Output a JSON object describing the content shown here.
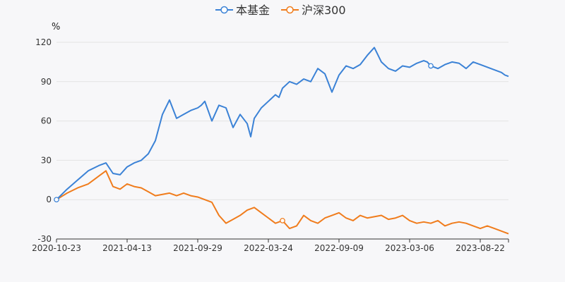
{
  "chart_data": {
    "type": "line",
    "unit": "%",
    "ylim": [
      -30,
      120
    ],
    "yticks": [
      "120",
      "90",
      "60",
      "30",
      "0",
      "-30"
    ],
    "ytick_values": [
      120,
      90,
      60,
      30,
      0,
      -30
    ],
    "xticks": [
      "2020-10-23",
      "2021-04-13",
      "2021-09-29",
      "2022-03-24",
      "2022-09-09",
      "2023-03-06",
      "2023-08-22"
    ],
    "x_range_index": [
      0,
      6.4
    ],
    "grid": "horizontal",
    "legend_position": "top-center",
    "series": [
      {
        "name": "本基金",
        "color": "#3b82d6",
        "x": [
          0,
          0.15,
          0.3,
          0.45,
          0.6,
          0.7,
          0.8,
          0.9,
          1.0,
          1.1,
          1.2,
          1.3,
          1.4,
          1.5,
          1.6,
          1.7,
          1.8,
          1.9,
          2.0,
          2.05,
          2.1,
          2.2,
          2.3,
          2.4,
          2.5,
          2.6,
          2.7,
          2.75,
          2.8,
          2.9,
          3.0,
          3.1,
          3.15,
          3.2,
          3.3,
          3.4,
          3.5,
          3.6,
          3.7,
          3.8,
          3.9,
          4.0,
          4.1,
          4.2,
          4.3,
          4.4,
          4.5,
          4.6,
          4.7,
          4.8,
          4.9,
          5.0,
          5.1,
          5.2,
          5.25,
          5.3,
          5.4,
          5.5,
          5.6,
          5.7,
          5.8,
          5.9,
          6.0,
          6.1,
          6.2,
          6.3,
          6.35,
          6.4
        ],
        "values": [
          0,
          8,
          15,
          22,
          26,
          28,
          20,
          19,
          25,
          28,
          30,
          35,
          45,
          65,
          76,
          62,
          65,
          68,
          70,
          72,
          75,
          60,
          72,
          70,
          55,
          65,
          58,
          48,
          62,
          70,
          75,
          80,
          78,
          85,
          90,
          88,
          92,
          90,
          100,
          96,
          82,
          95,
          102,
          100,
          103,
          110,
          116,
          105,
          100,
          98,
          102,
          101,
          104,
          106,
          105,
          102,
          100,
          103,
          105,
          104,
          100,
          105,
          103,
          101,
          99,
          97,
          95,
          94
        ],
        "markers": [
          0,
          55
        ]
      },
      {
        "name": "沪深300",
        "color": "#f07c1c",
        "x": [
          0,
          0.15,
          0.3,
          0.45,
          0.6,
          0.7,
          0.8,
          0.9,
          1.0,
          1.1,
          1.2,
          1.3,
          1.4,
          1.5,
          1.6,
          1.7,
          1.8,
          1.9,
          2.0,
          2.1,
          2.2,
          2.3,
          2.4,
          2.5,
          2.6,
          2.7,
          2.8,
          2.9,
          3.0,
          3.1,
          3.2,
          3.3,
          3.4,
          3.5,
          3.6,
          3.7,
          3.8,
          3.9,
          4.0,
          4.1,
          4.2,
          4.3,
          4.4,
          4.5,
          4.6,
          4.7,
          4.8,
          4.9,
          5.0,
          5.1,
          5.2,
          5.3,
          5.4,
          5.5,
          5.6,
          5.7,
          5.8,
          5.9,
          6.0,
          6.1,
          6.2,
          6.3,
          6.4
        ],
        "values": [
          0,
          5,
          9,
          12,
          18,
          22,
          10,
          8,
          12,
          10,
          9,
          6,
          3,
          4,
          5,
          3,
          5,
          3,
          2,
          0,
          -2,
          -12,
          -18,
          -15,
          -12,
          -8,
          -6,
          -10,
          -14,
          -18,
          -16,
          -22,
          -20,
          -12,
          -16,
          -18,
          -14,
          -12,
          -10,
          -14,
          -16,
          -12,
          -14,
          -13,
          -12,
          -15,
          -14,
          -12,
          -16,
          -18,
          -17,
          -18,
          -16,
          -20,
          -18,
          -17,
          -18,
          -20,
          -22,
          -20,
          -22,
          -24,
          -26
        ],
        "markers": [
          30
        ]
      }
    ]
  }
}
